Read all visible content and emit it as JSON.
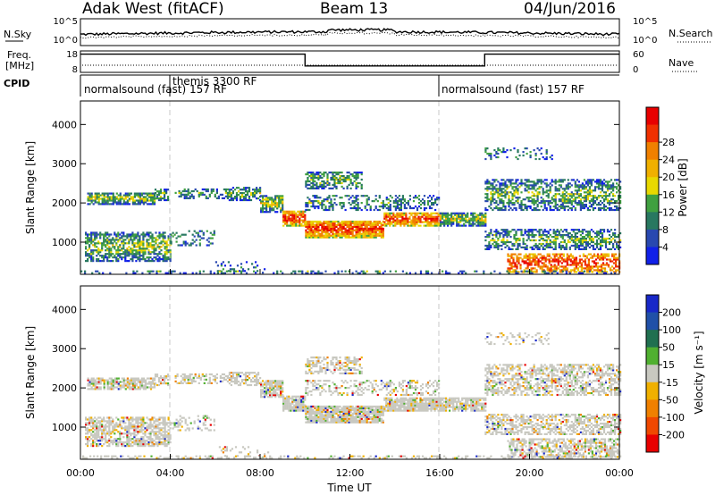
{
  "header": {
    "title": "Adak West (fitACF)",
    "beam": "Beam 13",
    "date": "04/Jun/2016"
  },
  "chart_data": {
    "type": "heatmap",
    "panels": [
      {
        "id": "nsky",
        "left_label": "N.Sky",
        "right_label": "N.Search",
        "yticks_left": [
          "10^5",
          "10^0"
        ],
        "yticks_right": [
          "10^5",
          "10^0"
        ],
        "series": [
          {
            "name": "N.Sky",
            "style": "solid"
          },
          {
            "name": "N.Search",
            "style": "dotted"
          }
        ]
      },
      {
        "id": "freq",
        "left_label": "Freq.",
        "left_unit": "[MHz]",
        "right_label": "Nave",
        "yticks_left": [
          "18",
          "8"
        ],
        "yticks_right": [
          "60",
          "0"
        ],
        "freq_steps": [
          {
            "from_h": 0,
            "to_h": 10,
            "value": 16.5
          },
          {
            "from_h": 10,
            "to_h": 18,
            "value": 11.0
          },
          {
            "from_h": 18,
            "to_h": 24,
            "value": 16.5
          }
        ]
      },
      {
        "id": "cpid",
        "left_label": "CPID",
        "segments": [
          {
            "start_h": 0,
            "end_h": 4,
            "label": "normalsound (fast) 157 RF",
            "row": 2
          },
          {
            "start_h": 4,
            "end_h": 16,
            "label": "themis 3300 RF",
            "row": 1
          },
          {
            "start_h": 16,
            "end_h": 24,
            "label": "normalsound (fast) 157 RF",
            "row": 2
          }
        ]
      },
      {
        "id": "power",
        "ylabel": "Slant Range [km]",
        "ylim": [
          180,
          4600
        ],
        "yticks": [
          1000,
          2000,
          3000,
          4000
        ],
        "colorbar": {
          "label": "Power [dB]",
          "ticks": [
            4,
            8,
            12,
            16,
            20,
            24,
            28
          ],
          "colors": [
            "#1020e8",
            "#2848b0",
            "#287860",
            "#40a040",
            "#e8d800",
            "#f0b000",
            "#f08000",
            "#f03000",
            "#e80000"
          ]
        }
      },
      {
        "id": "velocity",
        "ylabel": "Slant Range [km]",
        "ylim": [
          180,
          4600
        ],
        "yticks": [
          1000,
          2000,
          3000,
          4000
        ],
        "colorbar": {
          "label": "Velocity [m s⁻¹]",
          "ticks": [
            "200",
            "100",
            "50",
            "15",
            "-15",
            "-50",
            "-100",
            "-200"
          ],
          "colors": [
            "#1828c8",
            "#2050a8",
            "#207050",
            "#50b030",
            "#c8c8c0",
            "#f0b000",
            "#f08000",
            "#f04800",
            "#e80000"
          ]
        }
      }
    ],
    "x": {
      "label": "Time UT",
      "range_h": [
        0,
        24
      ],
      "ticks": [
        "00:00",
        "04:00",
        "08:00",
        "12:00",
        "16:00",
        "20:00",
        "00:00"
      ]
    },
    "scatter_bands": [
      {
        "t0": 0.3,
        "t1": 3.3,
        "r0": 1950,
        "r1": 2250,
        "dense": 0.75
      },
      {
        "t0": 3.3,
        "t1": 3.9,
        "r0": 2050,
        "r1": 2350,
        "dense": 0.6
      },
      {
        "t0": 0.2,
        "t1": 4.0,
        "r0": 500,
        "r1": 1250,
        "dense": 0.65
      },
      {
        "t0": 4.0,
        "t1": 6.0,
        "r0": 900,
        "r1": 1300,
        "dense": 0.3
      },
      {
        "t0": 4.2,
        "t1": 6.6,
        "r0": 2100,
        "r1": 2350,
        "dense": 0.45
      },
      {
        "t0": 6.6,
        "t1": 8.0,
        "r0": 2050,
        "r1": 2400,
        "dense": 0.6
      },
      {
        "t0": 8.0,
        "t1": 9.0,
        "r0": 1750,
        "r1": 2200,
        "dense": 0.8
      },
      {
        "t0": 9.0,
        "t1": 10.0,
        "r0": 1400,
        "r1": 1800,
        "dense": 0.9
      },
      {
        "t0": 10.0,
        "t1": 13.5,
        "r0": 1100,
        "r1": 1550,
        "dense": 0.9
      },
      {
        "t0": 13.5,
        "t1": 16.0,
        "r0": 1400,
        "r1": 1750,
        "dense": 0.85
      },
      {
        "t0": 16.0,
        "t1": 18.0,
        "r0": 1400,
        "r1": 1750,
        "dense": 0.8
      },
      {
        "t0": 10.0,
        "t1": 12.5,
        "r0": 2350,
        "r1": 2800,
        "dense": 0.55
      },
      {
        "t0": 10.0,
        "t1": 16.0,
        "r0": 1800,
        "r1": 2200,
        "dense": 0.35
      },
      {
        "t0": 18.0,
        "t1": 24.0,
        "r0": 1800,
        "r1": 2600,
        "dense": 0.55
      },
      {
        "t0": 18.0,
        "t1": 24.0,
        "r0": 800,
        "r1": 1300,
        "dense": 0.55
      },
      {
        "t0": 19.0,
        "t1": 24.0,
        "r0": 220,
        "r1": 700,
        "dense": 0.6
      },
      {
        "t0": 6.0,
        "t1": 8.5,
        "r0": 200,
        "r1": 500,
        "dense": 0.15
      },
      {
        "t0": 0.0,
        "t1": 24.0,
        "r0": 190,
        "r1": 280,
        "dense": 0.3
      },
      {
        "t0": 18.0,
        "t1": 21.0,
        "r0": 3100,
        "r1": 3400,
        "dense": 0.25
      }
    ]
  }
}
